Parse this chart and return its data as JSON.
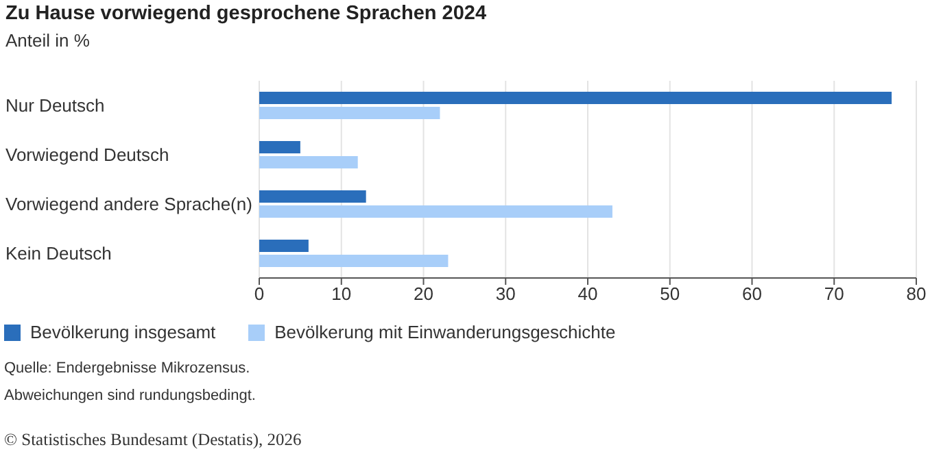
{
  "chart_data": {
    "type": "bar",
    "orientation": "horizontal",
    "title": "Zu Hause vorwiegend gesprochene Sprachen 2024",
    "subtitle": "Anteil in %",
    "categories": [
      "Nur Deutsch",
      "Vorwiegend Deutsch",
      "Vorwiegend andere Sprache(n)",
      "Kein Deutsch"
    ],
    "series": [
      {
        "name": "Bevölkerung insgesamt",
        "color": "#2a6ebb",
        "values": [
          77,
          5,
          13,
          6
        ]
      },
      {
        "name": "Bevölkerung mit Einwanderungsgeschichte",
        "color": "#a8cef9",
        "values": [
          22,
          12,
          43,
          23
        ]
      }
    ],
    "xlim": [
      0,
      80
    ],
    "xticks": [
      0,
      10,
      20,
      30,
      40,
      50,
      60,
      70,
      80
    ],
    "grid": "x",
    "legend": "bottom",
    "annotations": [
      "Quelle: Endergebnisse Mikrozensus.",
      "Abweichungen sind rundungsbedingt.",
      "© Statistisches Bundesamt (Destatis), 2026"
    ]
  }
}
